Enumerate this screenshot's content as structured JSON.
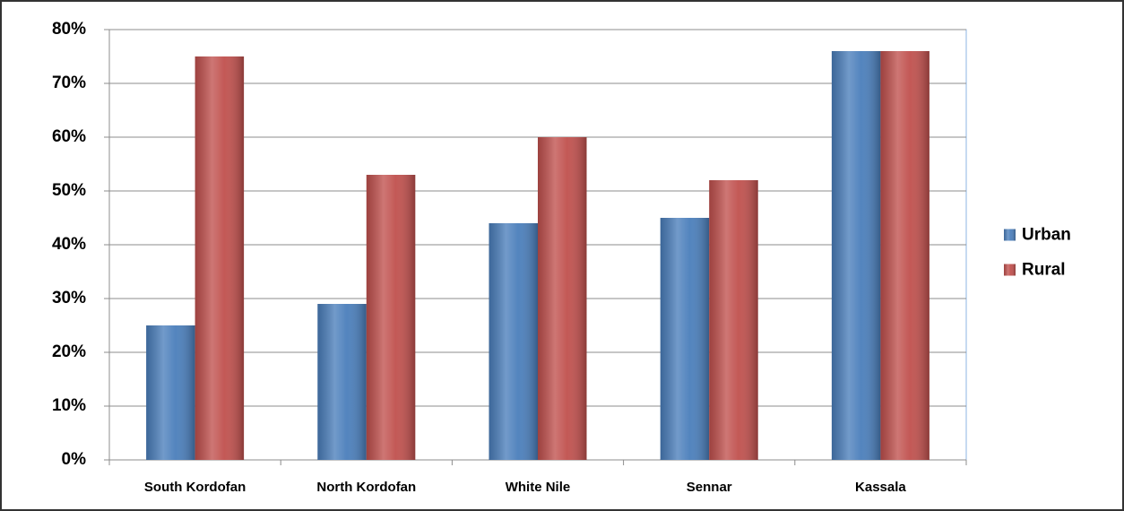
{
  "chart_data": {
    "type": "bar",
    "categories": [
      "South Kordofan",
      "North Kordofan",
      "White Nile",
      "Sennar",
      "Kassala"
    ],
    "series": [
      {
        "name": "Urban",
        "color": "#4a7ebb",
        "values": [
          25,
          29,
          44,
          45,
          76
        ]
      },
      {
        "name": "Rural",
        "color": "#c0504d",
        "values": [
          75,
          53,
          60,
          52,
          76
        ]
      }
    ],
    "ylim": [
      0,
      80
    ],
    "yticks": [
      {
        "value": 0,
        "label": "0%"
      },
      {
        "value": 10,
        "label": "10%"
      },
      {
        "value": 20,
        "label": "20%"
      },
      {
        "value": 30,
        "label": "30%"
      },
      {
        "value": 40,
        "label": "40%"
      },
      {
        "value": 50,
        "label": "50%"
      },
      {
        "value": 60,
        "label": "60%"
      },
      {
        "value": 70,
        "label": "70%"
      },
      {
        "value": 80,
        "label": "80%"
      }
    ],
    "grid": true,
    "legend": "right"
  }
}
